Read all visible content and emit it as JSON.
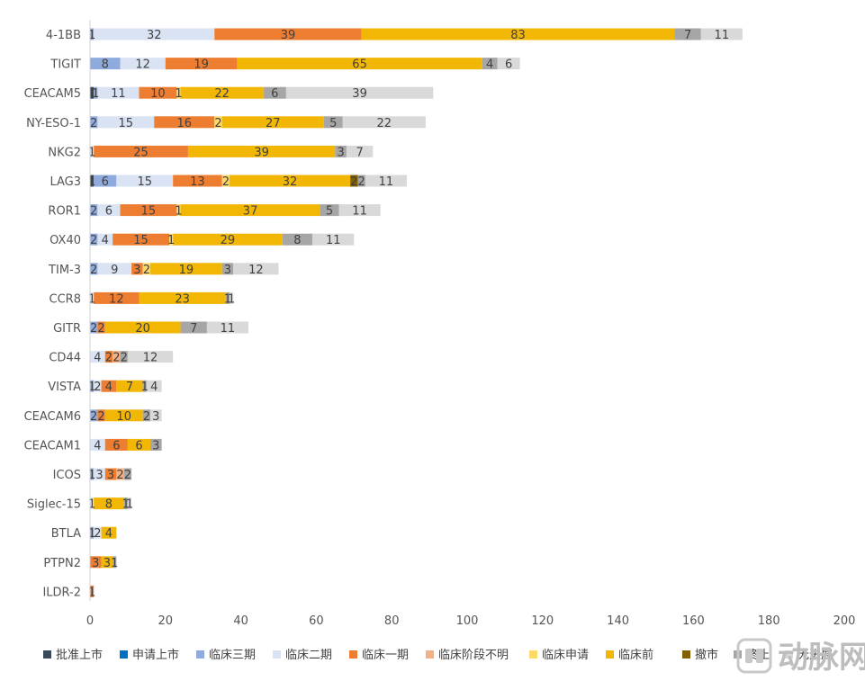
{
  "chart_data": {
    "type": "bar",
    "orientation": "horizontal",
    "stacked": true,
    "categories": [
      "4-1BB",
      "TIGIT",
      "CEACAM5",
      "NY-ESO-1",
      "NKG2",
      "LAG3",
      "ROR1",
      "OX40",
      "TIM-3",
      "CCR8",
      "GITR",
      "CD44",
      "VISTA",
      "CEACAM6",
      "CEACAM1",
      "ICOS",
      "Siglec-15",
      "BTLA",
      "PTPN2",
      "ILDR-2"
    ],
    "series": [
      {
        "name": "批准上市",
        "color": "#3a4a5c",
        "values": [
          0,
          0,
          1,
          0,
          0,
          1,
          0,
          0,
          0,
          0,
          0,
          0,
          0,
          0,
          0,
          0,
          0,
          0,
          0,
          0
        ]
      },
      {
        "name": "申请上市",
        "color": "#0070c0",
        "values": [
          0,
          0,
          0,
          0,
          0,
          0,
          0,
          0,
          0,
          0,
          0,
          0,
          0,
          0,
          0,
          0,
          0,
          0,
          0,
          0
        ]
      },
      {
        "name": "临床三期",
        "color": "#8faadc",
        "values": [
          1,
          8,
          1,
          2,
          0,
          6,
          2,
          2,
          2,
          0,
          2,
          0,
          1,
          2,
          0,
          1,
          0,
          1,
          0,
          0
        ]
      },
      {
        "name": "临床二期",
        "color": "#dae3f3",
        "values": [
          32,
          12,
          11,
          15,
          1,
          15,
          6,
          4,
          9,
          1,
          0,
          4,
          2,
          0,
          4,
          3,
          1,
          2,
          0,
          0
        ]
      },
      {
        "name": "临床一期",
        "color": "#ed7d31",
        "values": [
          39,
          19,
          10,
          16,
          25,
          13,
          15,
          15,
          3,
          12,
          2,
          2,
          4,
          2,
          6,
          3,
          0,
          0,
          3,
          1
        ]
      },
      {
        "name": "临床阶段不明",
        "color": "#f4b183",
        "values": [
          0,
          0,
          0,
          0,
          0,
          0,
          0,
          0,
          0,
          0,
          0,
          2,
          0,
          0,
          0,
          2,
          0,
          0,
          0,
          0
        ]
      },
      {
        "name": "临床申请",
        "color": "#ffd966",
        "values": [
          0,
          0,
          1,
          2,
          0,
          2,
          1,
          1,
          2,
          0,
          0,
          0,
          0,
          0,
          0,
          0,
          0,
          0,
          0,
          0
        ]
      },
      {
        "name": "临床前",
        "color": "#f2b705",
        "values": [
          83,
          65,
          22,
          27,
          39,
          32,
          37,
          29,
          19,
          23,
          20,
          0,
          7,
          10,
          6,
          0,
          8,
          4,
          3,
          0
        ]
      },
      {
        "name": "撤市",
        "color": "#806000",
        "values": [
          0,
          0,
          0,
          0,
          0,
          2,
          0,
          0,
          0,
          0,
          0,
          0,
          0,
          0,
          0,
          0,
          0,
          0,
          0,
          0
        ]
      },
      {
        "name": "终止",
        "color": "#a6a6a6",
        "values": [
          7,
          4,
          6,
          5,
          3,
          2,
          5,
          8,
          3,
          1,
          7,
          2,
          1,
          2,
          3,
          2,
          1,
          0,
          1,
          0
        ]
      },
      {
        "name": "无进展",
        "color": "#d9d9d9",
        "values": [
          11,
          6,
          39,
          22,
          7,
          11,
          11,
          11,
          12,
          1,
          11,
          12,
          4,
          3,
          0,
          0,
          1,
          0,
          0,
          0
        ]
      }
    ],
    "xlim": [
      0,
      200
    ],
    "xticks": [
      0,
      20,
      40,
      60,
      80,
      100,
      120,
      140,
      160,
      180,
      200
    ],
    "grid": false,
    "legend_position": "bottom",
    "title": "",
    "xlabel": "",
    "ylabel": ""
  },
  "watermark": {
    "text": "动脉网",
    "icon": "logo-icon"
  }
}
